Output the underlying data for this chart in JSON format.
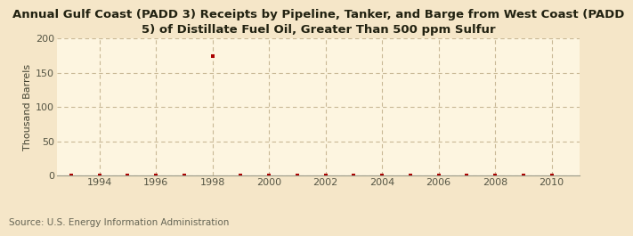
{
  "title": "Annual Gulf Coast (PADD 3) Receipts by Pipeline, Tanker, and Barge from West Coast (PADD\n5) of Distillate Fuel Oil, Greater Than 500 ppm Sulfur",
  "ylabel": "Thousand Barrels",
  "source": "Source: U.S. Energy Information Administration",
  "background_color": "#f5e6c8",
  "plot_background_color": "#fdf5e0",
  "marker_color": "#aa0000",
  "years": [
    1993,
    1994,
    1995,
    1996,
    1997,
    1998,
    1999,
    2000,
    2001,
    2002,
    2003,
    2004,
    2005,
    2006,
    2007,
    2008,
    2009,
    2010
  ],
  "values": [
    0,
    0,
    0,
    0,
    0,
    175,
    0,
    0,
    0,
    0,
    0,
    0,
    0,
    0,
    0,
    0,
    0,
    0
  ],
  "xlim": [
    1992.5,
    2011
  ],
  "ylim": [
    0,
    200
  ],
  "yticks": [
    0,
    50,
    100,
    150,
    200
  ],
  "xticks": [
    1994,
    1996,
    1998,
    2000,
    2002,
    2004,
    2006,
    2008,
    2010
  ],
  "grid_color": "#c8b896",
  "title_fontsize": 9.5,
  "ylabel_fontsize": 8,
  "tick_fontsize": 8,
  "source_fontsize": 7.5
}
